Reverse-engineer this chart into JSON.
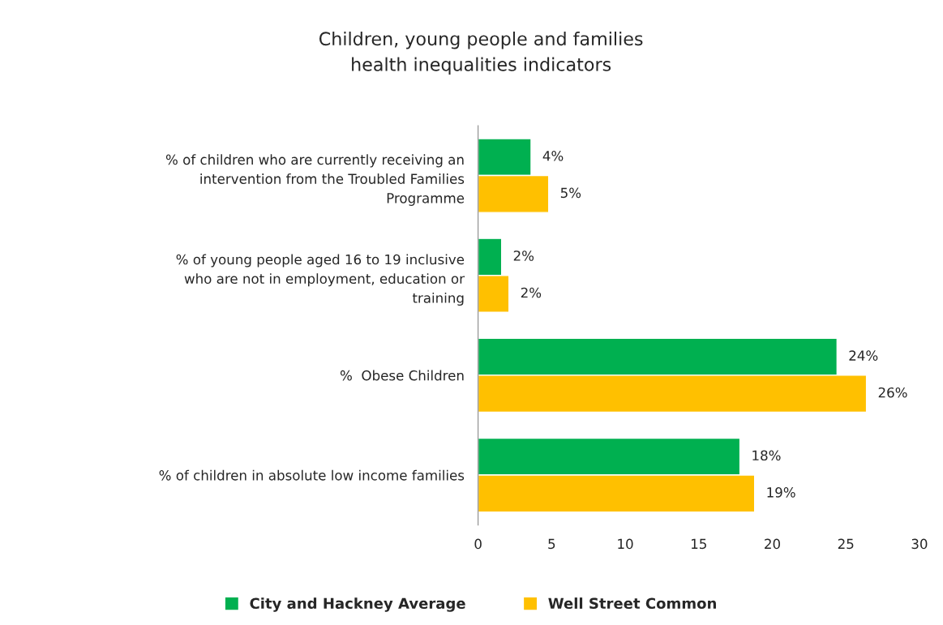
{
  "chart_data": {
    "type": "bar",
    "orientation": "horizontal",
    "title": "Children, young people and families\nhealth inequalities indicators",
    "categories": [
      "% of children who are currently receiving an\nintervention from the Troubled Families\nProgramme",
      "% of young people aged 16 to 19 inclusive\nwho are not in employment, education or\ntraining",
      "%  Obese Children",
      "% of children in absolute low income families"
    ],
    "series": [
      {
        "name": "City and Hackney Average",
        "color": "#00b050",
        "values": [
          3.6,
          1.6,
          24.4,
          17.8
        ],
        "value_labels": [
          "4%",
          "2%",
          "24%",
          "18%"
        ]
      },
      {
        "name": "Well Street Common",
        "color": "#ffc000",
        "values": [
          4.8,
          2.1,
          26.4,
          18.8
        ],
        "value_labels": [
          "5%",
          "2%",
          "26%",
          "19%"
        ]
      }
    ],
    "xlim": [
      0,
      30
    ],
    "xticks": [
      0,
      5,
      10,
      15,
      20,
      25,
      30
    ],
    "grid": false,
    "legend": "bottom"
  }
}
